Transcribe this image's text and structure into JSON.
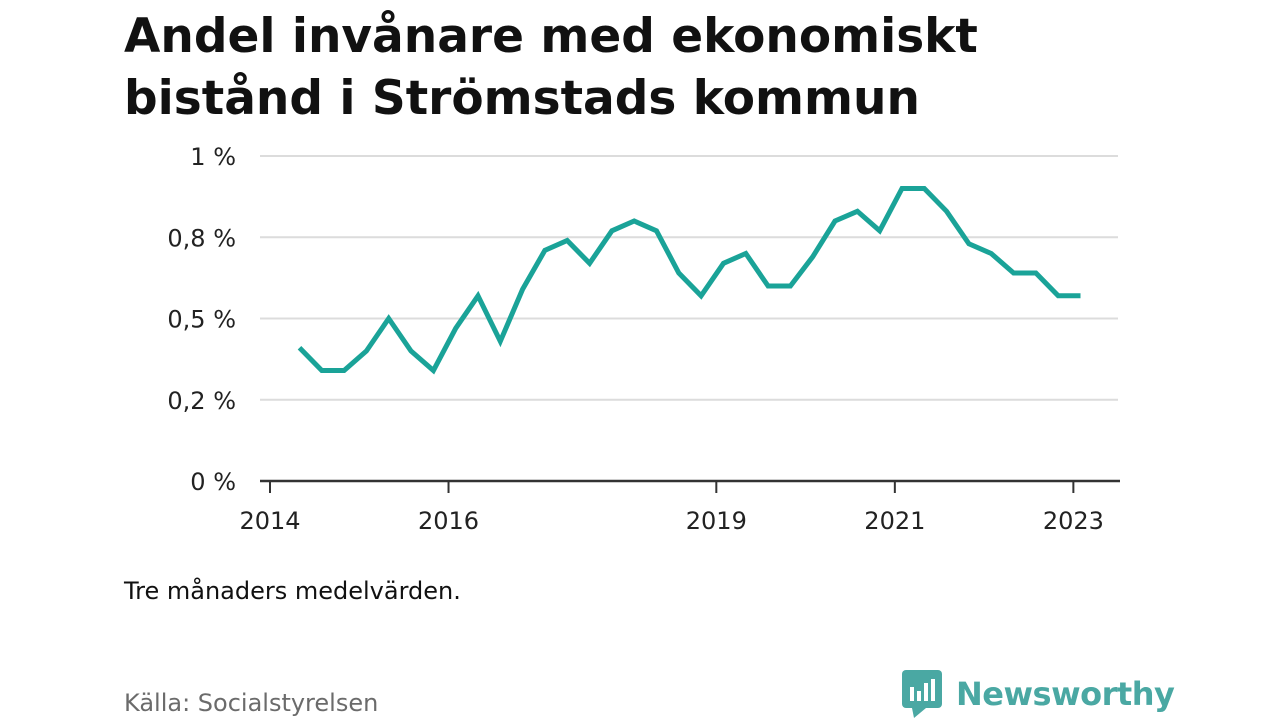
{
  "title": "Andel invånare med ekonomiskt bistånd i Strömstads kommun",
  "note": "Tre månaders medelvärden.",
  "source": "Källa: Socialstyrelsen",
  "brand": {
    "name": "Newsworthy",
    "color": "#4aa8a3",
    "icon": "newsworthy-logo-icon"
  },
  "chart_data": {
    "type": "line",
    "title": "Andel invånare med ekonomiskt bistånd i Strömstads kommun",
    "xlabel": "",
    "ylabel": "",
    "x_ticks": [
      "2014",
      "2016",
      "2019",
      "2021",
      "2023"
    ],
    "x_tick_values": [
      2014.0,
      2016.0,
      2019.0,
      2021.0,
      2023.0
    ],
    "xlim": [
      2014.0,
      2023.5
    ],
    "y_ticks": [
      "0 %",
      "0,2 %",
      "0,5 %",
      "0,8 %",
      "1 %"
    ],
    "y_tick_values": [
      0,
      0.25,
      0.5,
      0.75,
      1.0
    ],
    "ylim": [
      0,
      1.0
    ],
    "grid": true,
    "line_color": "#1aa398",
    "x": [
      2014.33,
      2014.58,
      2014.83,
      2015.08,
      2015.33,
      2015.58,
      2015.83,
      2016.08,
      2016.33,
      2016.58,
      2016.83,
      2017.08,
      2017.33,
      2017.58,
      2017.83,
      2018.08,
      2018.33,
      2018.58,
      2018.83,
      2019.08,
      2019.33,
      2019.58,
      2019.83,
      2020.08,
      2020.33,
      2020.58,
      2020.83,
      2021.08,
      2021.33,
      2021.58,
      2021.83,
      2022.08,
      2022.33,
      2022.58,
      2022.83,
      2023.08
    ],
    "values": [
      0.41,
      0.34,
      0.34,
      0.4,
      0.5,
      0.4,
      0.34,
      0.47,
      0.57,
      0.43,
      0.59,
      0.71,
      0.74,
      0.67,
      0.77,
      0.8,
      0.77,
      0.64,
      0.57,
      0.67,
      0.7,
      0.6,
      0.6,
      0.69,
      0.8,
      0.83,
      0.77,
      0.9,
      0.9,
      0.83,
      0.73,
      0.7,
      0.64,
      0.64,
      0.57,
      0.57
    ]
  }
}
